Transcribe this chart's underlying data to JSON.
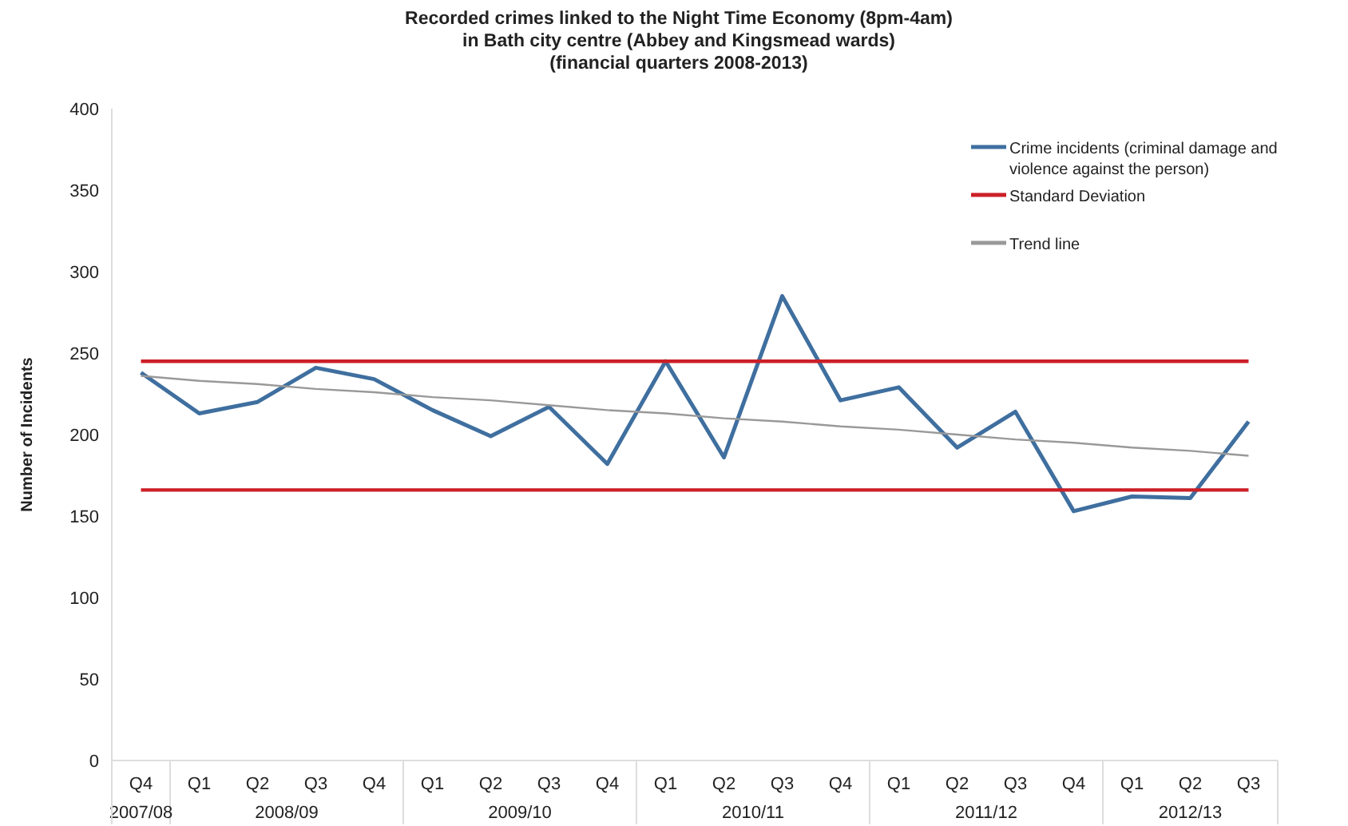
{
  "chart_data": {
    "type": "line",
    "title": "Recorded crimes linked to the Night Time Economy (8pm-4am)\nin Bath city centre (Abbey and Kingsmead wards)\n(financial quarters 2008-2013)",
    "ylabel": "Number of Incidents",
    "categories": [
      "Q4",
      "Q1",
      "Q2",
      "Q3",
      "Q4",
      "Q1",
      "Q2",
      "Q3",
      "Q4",
      "Q1",
      "Q2",
      "Q3",
      "Q4",
      "Q1",
      "Q2",
      "Q3",
      "Q4",
      "Q1",
      "Q2",
      "Q3"
    ],
    "annotations": [
      "2007/08",
      "2008/09",
      "2009/10",
      "2010/11",
      "2011/12",
      "2012/13"
    ],
    "series": [
      {
        "name": "Crime incidents (criminal damage and violence against the person)",
        "color": "#3f6f9f",
        "values": [
          238,
          213,
          220,
          241,
          234,
          215,
          199,
          217,
          182,
          245,
          186,
          285,
          221,
          229,
          192,
          214,
          153,
          162,
          161,
          208
        ]
      },
      {
        "name": "Standard Deviation",
        "color": "#cc1f26",
        "values": [
          245,
          245,
          245,
          245,
          245,
          245,
          245,
          245,
          245,
          245,
          245,
          245,
          245,
          245,
          245,
          245,
          245,
          245,
          245,
          245
        ]
      },
      {
        "color": "#cc1f26",
        "values": [
          166,
          166,
          166,
          166,
          166,
          166,
          166,
          166,
          166,
          166,
          166,
          166,
          166,
          166,
          166,
          166,
          166,
          166,
          166,
          166
        ]
      },
      {
        "name": "Trend line",
        "color": "#999999",
        "values": [
          236,
          233,
          231,
          228,
          226,
          223,
          221,
          218,
          215,
          213,
          210,
          208,
          205,
          203,
          200,
          197,
          195,
          192,
          190,
          187
        ]
      }
    ],
    "ylim": [
      0,
      400
    ],
    "yticks": [
      0,
      50,
      100,
      150,
      200,
      250,
      300,
      350,
      400
    ],
    "legend": "top right",
    "marker": "none",
    "line_style": "solid"
  }
}
